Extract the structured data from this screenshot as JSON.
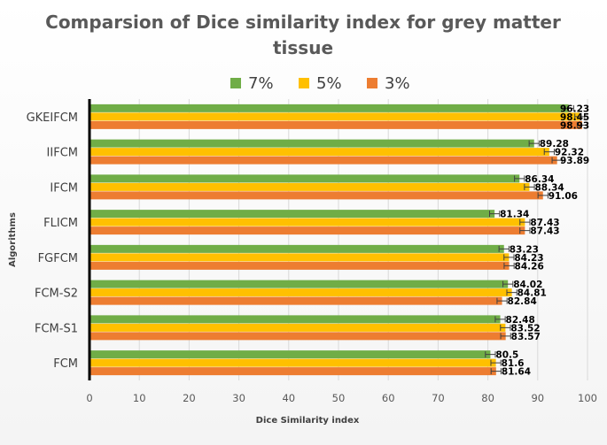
{
  "chart_data": {
    "type": "bar",
    "orientation": "horizontal",
    "title_line1": "Comparsion of Dice similarity index for grey matter",
    "title_line2": "tissue",
    "xlabel": "Dice Similarity index",
    "ylabel": "Algorithms",
    "xlim": [
      0,
      100
    ],
    "xticks": [
      0,
      10,
      20,
      30,
      40,
      50,
      60,
      70,
      80,
      90,
      100
    ],
    "grid": true,
    "legend_position": "top",
    "categories": [
      "GKEIFCM",
      "IIFCM",
      "IFCM",
      "FLICM",
      "FGFCM",
      "FCM-S2",
      "FCM-S1",
      "FCM"
    ],
    "series": [
      {
        "name": "7%",
        "color": "#70ad47",
        "values": [
          96.23,
          89.28,
          86.34,
          81.34,
          83.23,
          84.02,
          82.48,
          80.5
        ]
      },
      {
        "name": "5%",
        "color": "#ffc000",
        "values": [
          98.45,
          92.32,
          88.34,
          87.43,
          84.23,
          84.81,
          83.52,
          81.6
        ]
      },
      {
        "name": "3%",
        "color": "#ed7d31",
        "values": [
          98.93,
          93.89,
          91.06,
          87.43,
          84.26,
          82.84,
          83.57,
          81.64
        ]
      }
    ],
    "error_bar": 1
  }
}
